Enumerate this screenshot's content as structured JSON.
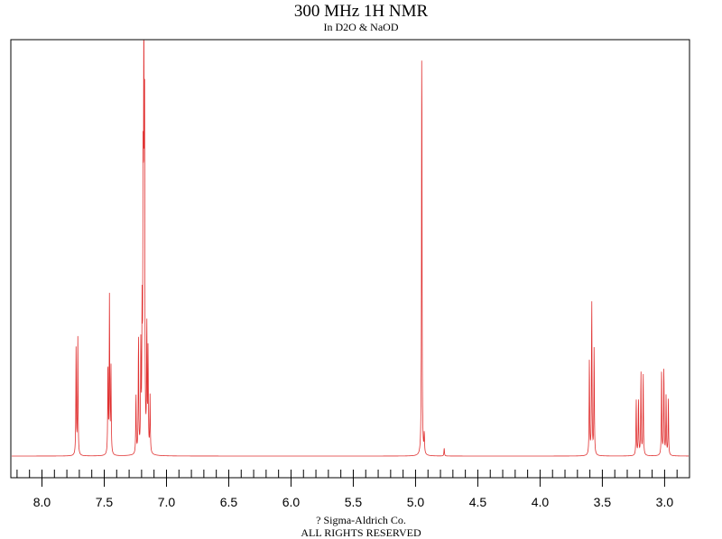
{
  "header": {
    "title": "300 MHz 1H NMR",
    "subtitle": "In D2O & NaOD"
  },
  "footer": {
    "copyright": "? Sigma-Aldrich Co.",
    "rights": "ALL RIGHTS RESERVED"
  },
  "colors": {
    "spectrum": "#e03030",
    "frame": "#000000"
  },
  "chart_data": {
    "type": "line",
    "title": "300 MHz 1H NMR",
    "subtitle": "In D2O & NaOD",
    "xlabel": "",
    "ylabel": "",
    "xlim": [
      8.25,
      2.8
    ],
    "x_reversed": true,
    "x_ticks": [
      "8.0",
      "7.5",
      "7.0",
      "6.5",
      "6.0",
      "5.5",
      "5.0",
      "4.5",
      "4.0",
      "3.5",
      "3.0"
    ],
    "x_tick_values": [
      8.0,
      7.5,
      7.0,
      6.5,
      6.0,
      5.5,
      5.0,
      4.5,
      4.0,
      3.5,
      3.0
    ],
    "minor_tick_step": 0.1,
    "ylim": [
      0,
      1.0
    ],
    "grid": false,
    "peaks": [
      {
        "shift": 7.726,
        "height": 0.27
      },
      {
        "shift": 7.712,
        "height": 0.29
      },
      {
        "shift": 7.47,
        "height": 0.23
      },
      {
        "shift": 7.458,
        "height": 0.39
      },
      {
        "shift": 7.446,
        "height": 0.22
      },
      {
        "shift": 7.245,
        "height": 0.15
      },
      {
        "shift": 7.225,
        "height": 0.29
      },
      {
        "shift": 7.206,
        "height": 0.26
      },
      {
        "shift": 7.196,
        "height": 0.32
      },
      {
        "shift": 7.188,
        "height": 0.62
      },
      {
        "shift": 7.182,
        "height": 0.98
      },
      {
        "shift": 7.176,
        "height": 0.8
      },
      {
        "shift": 7.158,
        "height": 0.31
      },
      {
        "shift": 7.148,
        "height": 0.25
      },
      {
        "shift": 7.132,
        "height": 0.14
      },
      {
        "shift": 4.95,
        "height": 1.05
      },
      {
        "shift": 4.93,
        "height": 0.05
      },
      {
        "shift": 4.77,
        "height": 0.02
      },
      {
        "shift": 3.604,
        "height": 0.24
      },
      {
        "shift": 3.585,
        "height": 0.39
      },
      {
        "shift": 3.566,
        "height": 0.27
      },
      {
        "shift": 3.228,
        "height": 0.14
      },
      {
        "shift": 3.21,
        "height": 0.14
      },
      {
        "shift": 3.19,
        "height": 0.21
      },
      {
        "shift": 3.172,
        "height": 0.21
      },
      {
        "shift": 3.024,
        "height": 0.22
      },
      {
        "shift": 3.006,
        "height": 0.22
      },
      {
        "shift": 2.988,
        "height": 0.15
      },
      {
        "shift": 2.97,
        "height": 0.14
      }
    ]
  }
}
